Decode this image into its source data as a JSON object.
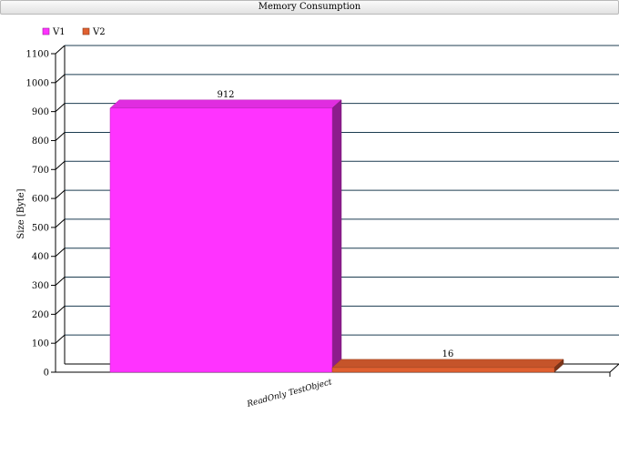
{
  "chart_data": {
    "type": "bar",
    "title": "Memory Consumption",
    "xlabel": "",
    "ylabel": "Size [Byte]",
    "ylim": [
      0,
      1100
    ],
    "yticks": [
      0,
      100,
      200,
      300,
      400,
      500,
      600,
      700,
      800,
      900,
      1000,
      1100
    ],
    "categories": [
      "ReadOnly TestObject"
    ],
    "series": [
      {
        "name": "V1",
        "values": [
          912
        ],
        "color": "#ff33ff"
      },
      {
        "name": "V2",
        "values": [
          16
        ],
        "color": "#e06030"
      }
    ],
    "grid": true,
    "legend": "top-left",
    "projection": "3d"
  }
}
